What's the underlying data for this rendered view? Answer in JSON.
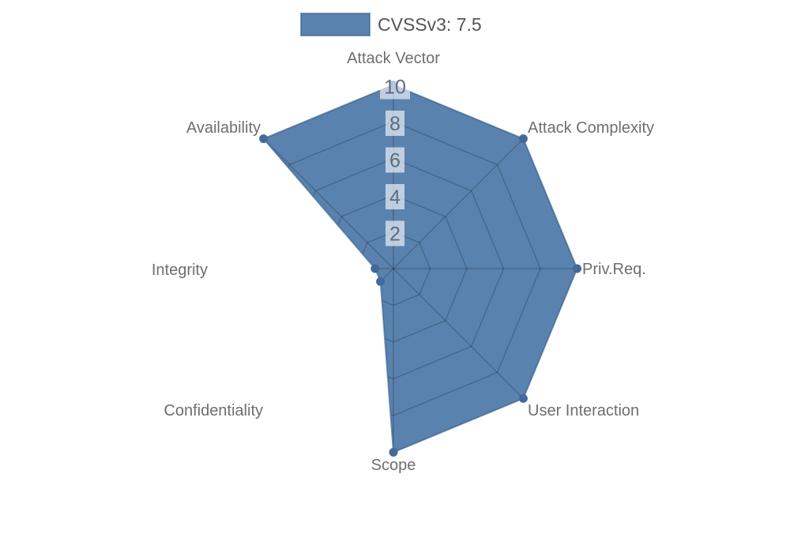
{
  "legend": {
    "label": "CVSSv3: 7.5"
  },
  "chart_data": {
    "type": "radar",
    "title": "",
    "legend_position": "top",
    "axes": [
      "Attack Vector",
      "Attack Complexity",
      "Priv.Req.",
      "User Interaction",
      "Scope",
      "Confidentiality",
      "Integrity",
      "Availability"
    ],
    "series": [
      {
        "name": "CVSSv3: 7.5",
        "values": [
          10,
          10,
          10,
          10,
          10,
          1,
          1,
          10
        ]
      }
    ],
    "axis_range": [
      0,
      10
    ],
    "ticks": [
      "2",
      "4",
      "6",
      "8",
      "10"
    ],
    "grid": "spider-web rings at each tick plus radial spokes, visible only beneath the data fill",
    "colors": {
      "series_fill": "#4d79a8",
      "series_fill_opacity": 0.93,
      "series_border": "#3e6695",
      "series_border_opacity": 0.65,
      "point": "#44699b",
      "grid_line": "#000000",
      "grid_line_opacity": 0.2,
      "tick_text": "#5d6b80",
      "tick_backdrop": "#ffffff",
      "tick_backdrop_opacity": 0.62,
      "axis_label": "#6e6e6e",
      "legend_text": "#555555",
      "background": "#ffffff"
    }
  }
}
